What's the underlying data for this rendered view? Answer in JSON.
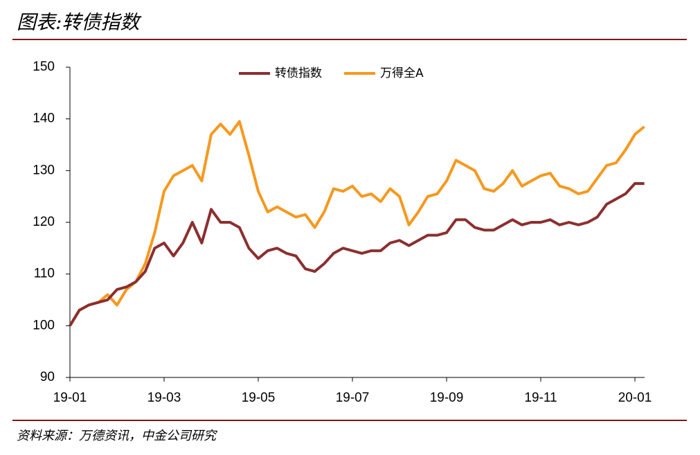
{
  "chart_data": {
    "type": "line",
    "title": "图表:转债指数",
    "source": "资料来源：万德资讯，中金公司研究",
    "categories": [
      "19-01",
      null,
      null,
      null,
      null,
      null,
      null,
      null,
      null,
      null,
      "19-03",
      null,
      null,
      null,
      null,
      null,
      null,
      null,
      null,
      null,
      "19-05",
      null,
      null,
      null,
      null,
      null,
      null,
      null,
      null,
      null,
      "19-07",
      null,
      null,
      null,
      null,
      null,
      null,
      null,
      null,
      null,
      "19-09",
      null,
      null,
      null,
      null,
      null,
      null,
      null,
      null,
      null,
      "19-11",
      null,
      null,
      null,
      null,
      null,
      null,
      null,
      null,
      null,
      "20-01",
      null
    ],
    "series": [
      {
        "name": "转债指数",
        "color": "#8b2f2f",
        "values": [
          100,
          103,
          104,
          104.5,
          105,
          107,
          107.5,
          108.5,
          110.5,
          115,
          116,
          113.5,
          116,
          120,
          116,
          122.5,
          120,
          120,
          119,
          115,
          113,
          114.5,
          115,
          114,
          113.5,
          111,
          110.5,
          112,
          114,
          115,
          114.5,
          114,
          114.5,
          114.5,
          116,
          116.5,
          115.5,
          116.5,
          117.5,
          117.5,
          118,
          120.5,
          120.5,
          119,
          118.5,
          118.5,
          119.5,
          120.5,
          119.5,
          120,
          120,
          120.5,
          119.5,
          120,
          119.5,
          120,
          121,
          123.5,
          124.5,
          125.5,
          127.5,
          127.5
        ]
      },
      {
        "name": "万得全A",
        "color": "#f7981d",
        "values": [
          100,
          103,
          104,
          104.5,
          106,
          104,
          107,
          108.5,
          112,
          118,
          126,
          129,
          130,
          131,
          128,
          137,
          139,
          137,
          139.5,
          133,
          126,
          122,
          123,
          122,
          121,
          121.5,
          119,
          122,
          126.5,
          126,
          127,
          125,
          125.5,
          124,
          126.5,
          125,
          119.5,
          122,
          125,
          125.5,
          128,
          132,
          131,
          130,
          126.5,
          126,
          127.5,
          130,
          127,
          128,
          129,
          129.5,
          127,
          126.5,
          125.5,
          126,
          128.5,
          131,
          131.5,
          134,
          137,
          138.5
        ]
      }
    ],
    "ylim": [
      90,
      150
    ],
    "yticks": [
      90,
      100,
      110,
      120,
      130,
      140,
      150
    ],
    "grid": false,
    "legend": "top"
  }
}
